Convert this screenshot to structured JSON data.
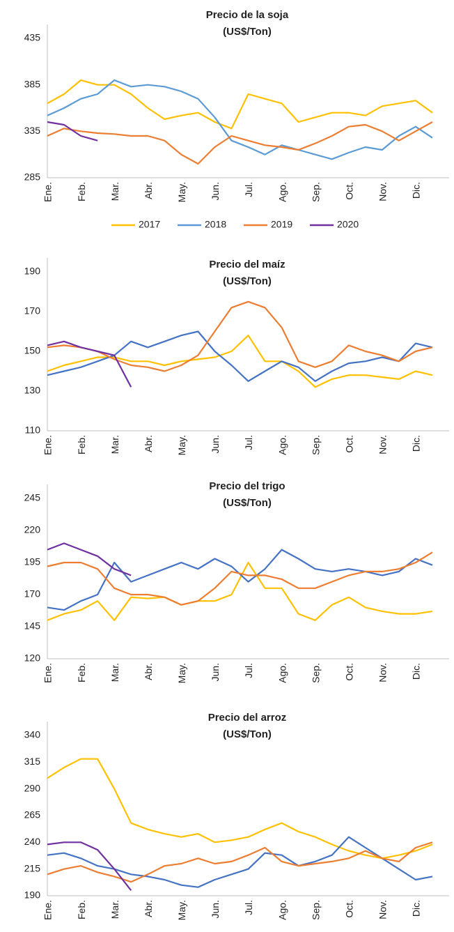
{
  "chart_data": [
    {
      "type": "line",
      "title": "Precio de la soja",
      "subtitle": "(US$/Ton)",
      "categories": [
        "Ene.",
        null,
        "Feb.",
        null,
        "Mar.",
        null,
        "Abr.",
        null,
        "May.",
        null,
        "Jun.",
        null,
        "Jul.",
        null,
        "Ago.",
        null,
        "Sep.",
        null,
        "Oct.",
        null,
        "Nov.",
        null,
        "Dic.",
        null
      ],
      "ylim": [
        285,
        435
      ],
      "yticks": [
        285,
        335,
        385,
        435
      ],
      "legend": "bottom",
      "series": [
        {
          "name": "2017",
          "color": "#FFC000",
          "values": [
            365,
            375,
            390,
            385,
            385,
            375,
            360,
            348,
            352,
            355,
            345,
            338,
            375,
            370,
            365,
            345,
            350,
            355,
            355,
            352,
            362,
            365,
            368,
            355
          ]
        },
        {
          "name": "2018",
          "color": "#5B9BD5",
          "values": [
            352,
            360,
            370,
            375,
            390,
            383,
            385,
            383,
            378,
            370,
            350,
            325,
            318,
            310,
            320,
            315,
            310,
            305,
            312,
            318,
            315,
            330,
            340,
            328
          ]
        },
        {
          "name": "2019",
          "color": "#ED7D31",
          "values": [
            330,
            338,
            335,
            333,
            332,
            330,
            330,
            325,
            310,
            300,
            318,
            330,
            325,
            320,
            318,
            315,
            322,
            330,
            340,
            342,
            335,
            325,
            335,
            345
          ]
        },
        {
          "name": "2020",
          "color": "#7030A0",
          "values": [
            345,
            342,
            330,
            325,
            null,
            null,
            null,
            null,
            null,
            null,
            null,
            null,
            null,
            null,
            null,
            null,
            null,
            null,
            null,
            null,
            null,
            null,
            null,
            null
          ]
        }
      ]
    },
    {
      "type": "line",
      "title": "Precio del maíz",
      "subtitle": "(US$/Ton)",
      "categories": [
        "Ene.",
        null,
        "Feb.",
        null,
        "Mar.",
        null,
        "Abr.",
        null,
        "May.",
        null,
        "Jun.",
        null,
        "Jul.",
        null,
        "Ago.",
        null,
        "Sep.",
        null,
        "Oct.",
        null,
        "Nov.",
        null,
        "Dic.",
        null
      ],
      "ylim": [
        110,
        190
      ],
      "yticks": [
        110,
        130,
        150,
        170,
        190
      ],
      "series": [
        {
          "name": "2017",
          "color": "#FFC000",
          "values": [
            140,
            143,
            145,
            147,
            147,
            145,
            145,
            143,
            145,
            146,
            147,
            150,
            158,
            145,
            145,
            140,
            132,
            136,
            138,
            138,
            137,
            136,
            140,
            138
          ]
        },
        {
          "name": "2018",
          "color": "#4472C4",
          "values": [
            138,
            140,
            142,
            145,
            148,
            155,
            152,
            155,
            158,
            160,
            150,
            143,
            135,
            140,
            145,
            142,
            135,
            140,
            144,
            145,
            147,
            145,
            154,
            152
          ]
        },
        {
          "name": "2019",
          "color": "#ED7D31",
          "values": [
            152,
            153,
            152,
            150,
            146,
            143,
            142,
            140,
            143,
            148,
            160,
            172,
            175,
            172,
            162,
            145,
            142,
            145,
            153,
            150,
            148,
            145,
            150,
            152
          ]
        },
        {
          "name": "2020",
          "color": "#7030A0",
          "values": [
            153,
            155,
            152,
            150,
            148,
            132,
            null,
            null,
            null,
            null,
            null,
            null,
            null,
            null,
            null,
            null,
            null,
            null,
            null,
            null,
            null,
            null,
            null,
            null
          ]
        }
      ]
    },
    {
      "type": "line",
      "title": "Precio del trigo",
      "subtitle": "(US$/Ton)",
      "categories": [
        "Ene.",
        null,
        "Feb.",
        null,
        "Mar.",
        null,
        "Abr.",
        null,
        "May.",
        null,
        "Jun.",
        null,
        "Jul.",
        null,
        "Ago.",
        null,
        "Sep.",
        null,
        "Oct.",
        null,
        "Nov.",
        null,
        "Dic.",
        null
      ],
      "ylim": [
        120,
        245
      ],
      "yticks": [
        120,
        145,
        170,
        195,
        220,
        245
      ],
      "series": [
        {
          "name": "2017",
          "color": "#FFC000",
          "values": [
            150,
            155,
            158,
            165,
            150,
            168,
            167,
            168,
            162,
            165,
            165,
            170,
            195,
            175,
            175,
            155,
            150,
            162,
            168,
            160,
            157,
            155,
            155,
            157
          ]
        },
        {
          "name": "2018",
          "color": "#4472C4",
          "values": [
            160,
            158,
            165,
            170,
            195,
            180,
            185,
            190,
            195,
            190,
            198,
            192,
            180,
            190,
            205,
            198,
            190,
            188,
            190,
            188,
            185,
            188,
            198,
            193
          ]
        },
        {
          "name": "2019",
          "color": "#ED7D31",
          "values": [
            192,
            195,
            195,
            190,
            175,
            170,
            170,
            168,
            162,
            165,
            175,
            188,
            185,
            185,
            182,
            175,
            175,
            180,
            185,
            188,
            188,
            190,
            195,
            203
          ]
        },
        {
          "name": "2020",
          "color": "#7030A0",
          "values": [
            205,
            210,
            205,
            200,
            190,
            185,
            null,
            null,
            null,
            null,
            null,
            null,
            null,
            null,
            null,
            null,
            null,
            null,
            null,
            null,
            null,
            null,
            null,
            null
          ]
        }
      ]
    },
    {
      "type": "line",
      "title": "Precio del arroz",
      "subtitle": "(US$/Ton)",
      "categories": [
        "Ene.",
        null,
        "Feb.",
        null,
        "Mar.",
        null,
        "Abr.",
        null,
        "May.",
        null,
        "Jun.",
        null,
        "Jul.",
        null,
        "Ago.",
        null,
        "Sep.",
        null,
        "Oct.",
        null,
        "Nov.",
        null,
        "Dic.",
        null
      ],
      "ylim": [
        190,
        340
      ],
      "yticks": [
        190,
        215,
        240,
        265,
        290,
        315,
        340
      ],
      "series": [
        {
          "name": "2017",
          "color": "#FFC000",
          "values": [
            300,
            310,
            318,
            318,
            290,
            258,
            252,
            248,
            245,
            248,
            240,
            242,
            245,
            252,
            258,
            250,
            245,
            238,
            232,
            228,
            225,
            228,
            232,
            238
          ]
        },
        {
          "name": "2018",
          "color": "#4472C4",
          "values": [
            228,
            230,
            225,
            218,
            215,
            210,
            208,
            205,
            200,
            198,
            205,
            210,
            215,
            230,
            228,
            218,
            222,
            228,
            245,
            235,
            225,
            215,
            205,
            208
          ]
        },
        {
          "name": "2019",
          "color": "#ED7D31",
          "values": [
            210,
            215,
            218,
            212,
            208,
            203,
            210,
            218,
            220,
            225,
            220,
            222,
            228,
            235,
            222,
            218,
            220,
            222,
            225,
            232,
            225,
            222,
            235,
            240
          ]
        },
        {
          "name": "2020",
          "color": "#7030A0",
          "values": [
            238,
            240,
            240,
            233,
            215,
            195,
            null,
            null,
            null,
            null,
            null,
            null,
            null,
            null,
            null,
            null,
            null,
            null,
            null,
            null,
            null,
            null,
            null,
            null
          ]
        }
      ]
    }
  ]
}
